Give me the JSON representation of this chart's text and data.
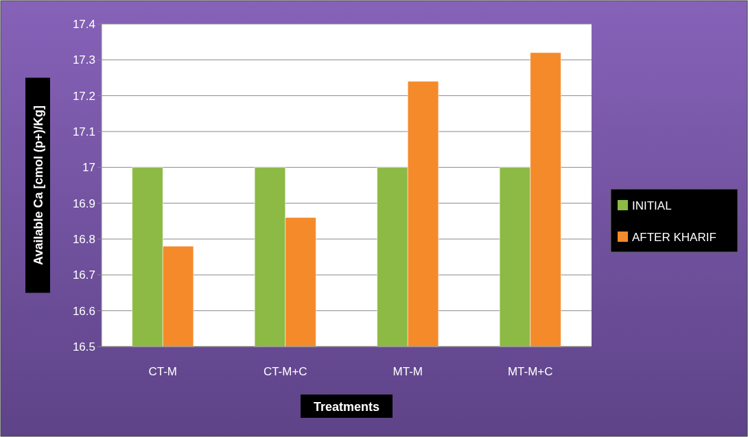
{
  "chart_data": {
    "type": "bar",
    "xlabel": "Treatments",
    "ylabel": "Available Ca [cmol (p+)/Kg]",
    "categories": [
      "CT-M",
      "CT-M+C",
      "MT-M",
      "MT-M+C"
    ],
    "series": [
      {
        "name": "INITIAL",
        "color": "#8cba45",
        "values": [
          17.0,
          17.0,
          17.0,
          17.0
        ]
      },
      {
        "name": "AFTER KHARIF",
        "color": "#f58a2a",
        "values": [
          16.78,
          16.86,
          17.24,
          17.32
        ]
      }
    ],
    "ylim": [
      16.5,
      17.4
    ],
    "yticks": [
      16.5,
      16.6,
      16.7,
      16.8,
      16.9,
      17,
      17.1,
      17.2,
      17.3,
      17.4
    ],
    "grid": "y",
    "legend": "right"
  }
}
